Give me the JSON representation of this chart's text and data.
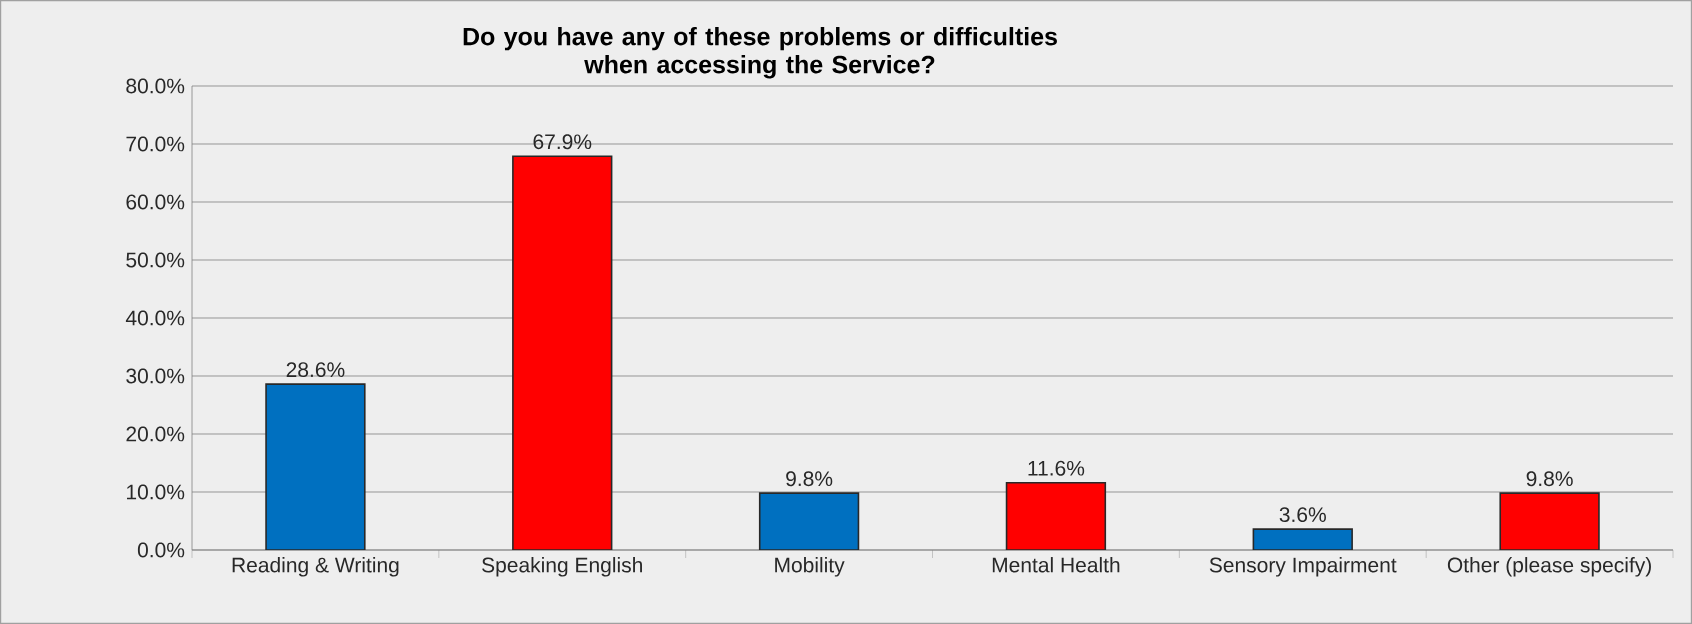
{
  "chart_data": {
    "type": "bar",
    "title": "Do you have any of these problems or difficulties\nwhen accessing the Service?",
    "categories": [
      "Reading & Writing",
      "Speaking English",
      "Mobility",
      "Mental Health",
      "Sensory Impairment",
      "Other (please specify)"
    ],
    "values": [
      28.6,
      67.9,
      9.8,
      11.6,
      3.6,
      9.8
    ],
    "colors": [
      "#0070c0",
      "#ff0000",
      "#0070c0",
      "#ff0000",
      "#0070c0",
      "#ff0000"
    ],
    "value_labels": [
      "28.6%",
      "67.9%",
      "9.8%",
      "11.6%",
      "3.6%",
      "9.8%"
    ],
    "ylim": [
      0,
      80
    ],
    "yticks": [
      {
        "value": 0,
        "label": "0.0%"
      },
      {
        "value": 10,
        "label": "10.0%"
      },
      {
        "value": 20,
        "label": "20.0%"
      },
      {
        "value": 30,
        "label": "30.0%"
      },
      {
        "value": 40,
        "label": "40.0%"
      },
      {
        "value": 50,
        "label": "50.0%"
      },
      {
        "value": 60,
        "label": "60.0%"
      },
      {
        "value": 70,
        "label": "70.0%"
      },
      {
        "value": 80,
        "label": "80.0%"
      }
    ],
    "grid": "y"
  }
}
